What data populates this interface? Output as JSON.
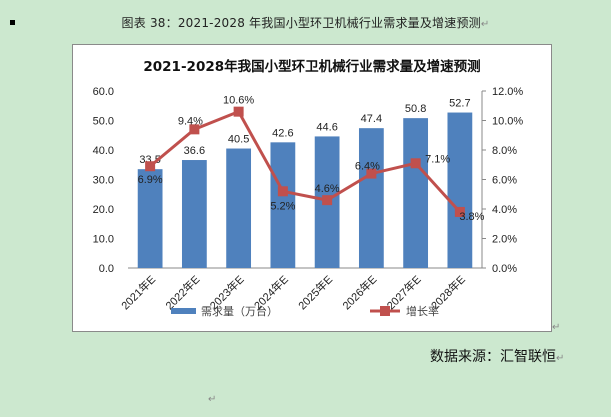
{
  "document": {
    "caption": "图表 38：2021-2028 年我国小型环卫机械行业需求量及增速预测",
    "source": "数据来源：汇智联恒",
    "paragraph_mark": "↵"
  },
  "chart_data": {
    "type": "bar+line",
    "title": "2021-2028年我国小型环卫机械行业需求量及增速预测",
    "categories": [
      "2021年E",
      "2022年E",
      "2023年E",
      "2024年E",
      "2025年E",
      "2026年E",
      "2027年E",
      "2028年E"
    ],
    "series": [
      {
        "name": "需求量（万台）",
        "type": "bar",
        "axis": "left",
        "color": "#4f81bd",
        "values": [
          33.5,
          36.6,
          40.5,
          42.6,
          44.6,
          47.4,
          50.8,
          52.7
        ]
      },
      {
        "name": "增长率",
        "type": "line",
        "axis": "right",
        "color": "#c0504d",
        "marker": "square",
        "values": [
          6.9,
          9.4,
          10.6,
          5.2,
          4.6,
          6.4,
          7.1,
          3.8
        ],
        "labels": [
          "6.9%",
          "9.4%",
          "10.6%",
          "5.2%",
          "4.6%",
          "6.4%",
          "7.1%",
          "3.8%"
        ]
      }
    ],
    "y_left": {
      "ylim": [
        0,
        60
      ],
      "ticks": [
        "0.0",
        "10.0",
        "20.0",
        "30.0",
        "40.0",
        "50.0",
        "60.0"
      ]
    },
    "y_right": {
      "ylim": [
        0,
        12
      ],
      "ticks": [
        "0.0%",
        "2.0%",
        "4.0%",
        "6.0%",
        "8.0%",
        "10.0%",
        "12.0%"
      ]
    },
    "xlabel": "",
    "ylabel": "",
    "legend": {
      "position": "bottom",
      "entries": [
        "需求量（万台）",
        "增长率"
      ]
    },
    "grid": false
  }
}
